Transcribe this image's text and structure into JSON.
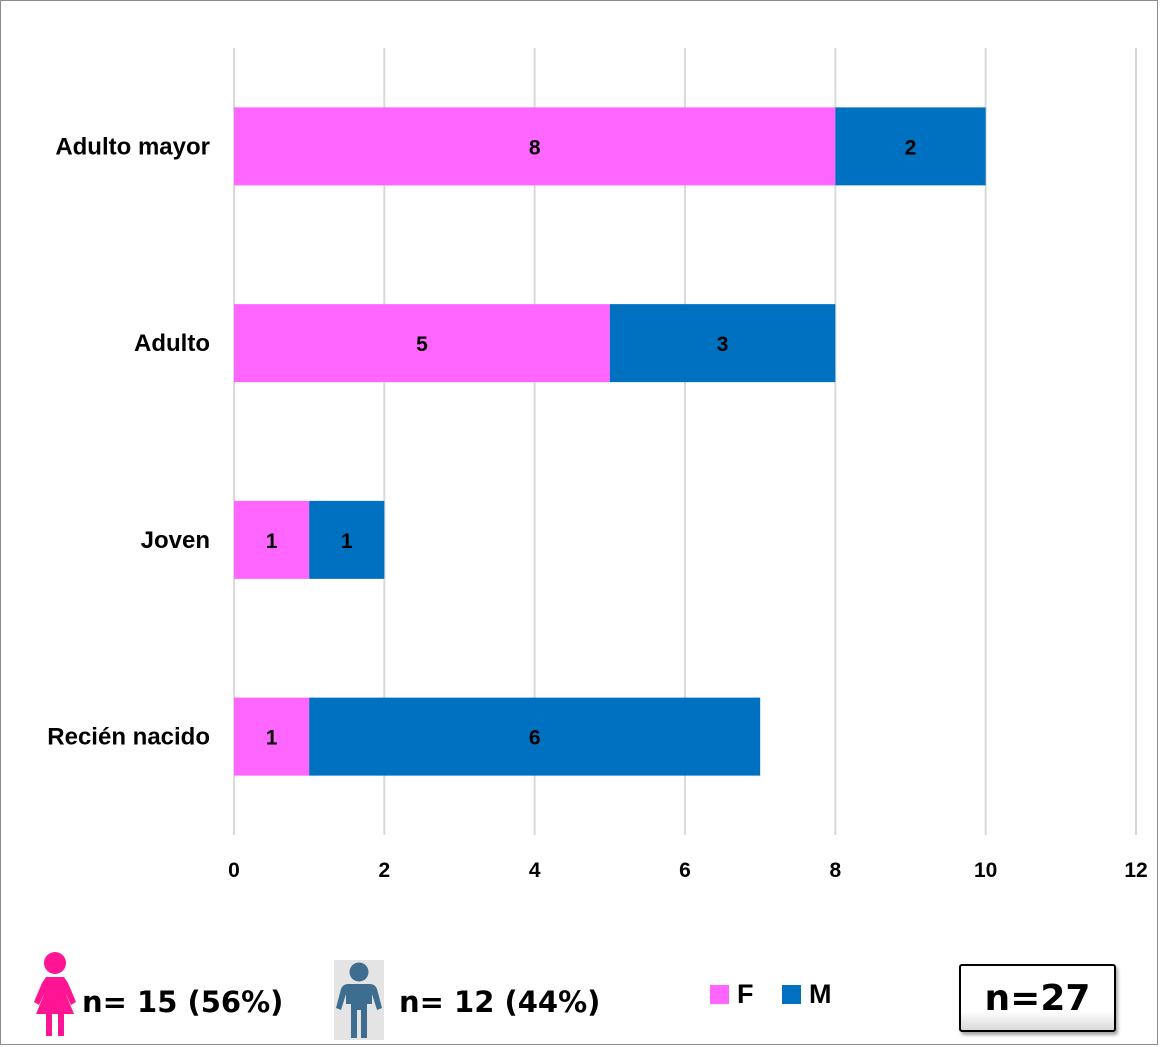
{
  "chart_data": {
    "type": "bar",
    "orientation": "horizontal",
    "stacked": true,
    "categories": [
      "Recién nacido",
      "Joven",
      "Adulto",
      "Adulto mayor"
    ],
    "series": [
      {
        "name": "F",
        "values": [
          1,
          1,
          5,
          8
        ],
        "color": "#ff66ff"
      },
      {
        "name": "M",
        "values": [
          6,
          1,
          3,
          2
        ],
        "color": "#0070c0"
      }
    ],
    "xlim": [
      0,
      12
    ],
    "xticks": [
      0,
      2,
      4,
      6,
      8,
      10,
      12
    ],
    "grid": "vertical",
    "data_labels": true,
    "legend_position": "bottom"
  },
  "summary": {
    "female": {
      "text": "n= 15 (56%)",
      "icon": "female-person-icon",
      "color": "#ff1493"
    },
    "male": {
      "text": "n= 12 (44%)",
      "icon": "male-person-icon",
      "color": "#3d6e90"
    },
    "total": "n=27"
  },
  "legend": {
    "f_label": "F",
    "m_label": "M"
  }
}
